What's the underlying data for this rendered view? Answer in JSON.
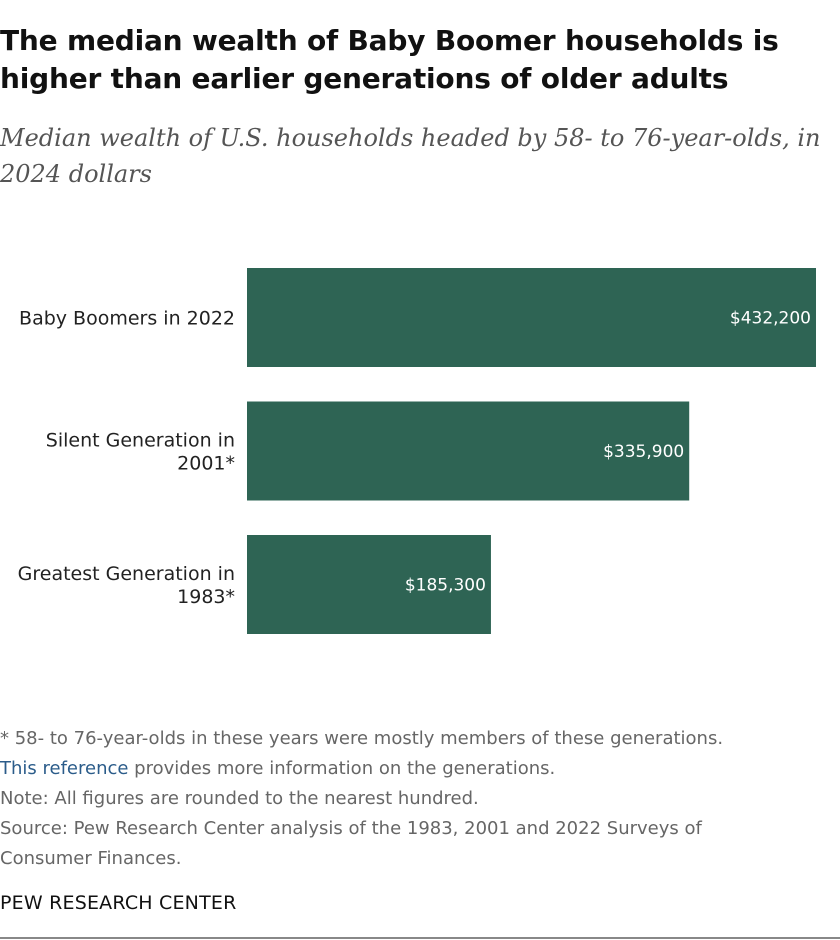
{
  "chart_data": {
    "type": "bar",
    "orientation": "horizontal",
    "title": "The median wealth of Baby Boomer households is higher than earlier generations of older adults",
    "subtitle": "Median wealth of U.S. households headed by 58- to 76-year-olds, in 2024 dollars",
    "categories": [
      [
        "Baby Boomers in 2022"
      ],
      [
        "Silent Generation in",
        "2001*"
      ],
      [
        "Greatest Generation in",
        "1983*"
      ]
    ],
    "values": [
      432200,
      335900,
      185300
    ],
    "value_labels": [
      "$432,200",
      "$335,900",
      "$185,300"
    ],
    "bar_color": "#2e6454",
    "xlim": [
      0,
      432200
    ],
    "grid": false,
    "legend": "none"
  },
  "footer": {
    "footnote": "* 58- to 76-year-olds in these years were mostly members of these generations.",
    "reference_link": "This reference",
    "reference_text": " provides more information on the generations.",
    "note": "Note: All figures are rounded to the nearest hundred.",
    "source_line1": "Source: Pew Research Center analysis of the 1983, 2001 and 2022 Surveys of",
    "source_line2": "Consumer Finances.",
    "brand": "PEW RESEARCH CENTER"
  }
}
